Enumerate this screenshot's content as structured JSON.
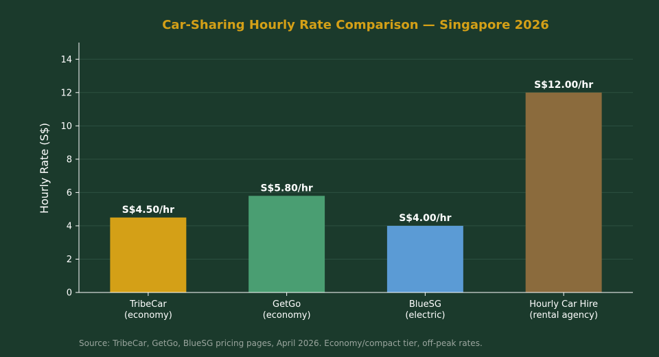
{
  "chart_data": {
    "type": "bar",
    "title": "Car-Sharing Hourly Rate Comparison — Singapore 2026",
    "xlabel": "",
    "ylabel": "Hourly Rate (S$)",
    "ylim": [
      0,
      15
    ],
    "yticks": [
      0,
      2,
      4,
      6,
      8,
      10,
      12,
      14
    ],
    "grid": true,
    "categories": [
      [
        "TribeCar",
        "(economy)"
      ],
      [
        "GetGo",
        "(economy)"
      ],
      [
        "BlueSG",
        "(electric)"
      ],
      [
        "Hourly Car Hire",
        "(rental agency)"
      ]
    ],
    "values": [
      4.5,
      5.8,
      4.0,
      12.0
    ],
    "data_labels": [
      "S$4.50/hr",
      "S$5.80/hr",
      "S$4.00/hr",
      "S$12.00/hr"
    ],
    "colors": [
      "#d4a017",
      "#4a9e72",
      "#5b9bd5",
      "#8b6b3d"
    ],
    "source": "Source: TribeCar, GetGo, BlueSG pricing pages, April 2026. Economy/compact tier, off-peak rates."
  },
  "theme": {
    "background": "#1b3a2c",
    "title_color": "#d4a017",
    "grid_color": "#2c5140",
    "axis_color": "#ffffff"
  }
}
